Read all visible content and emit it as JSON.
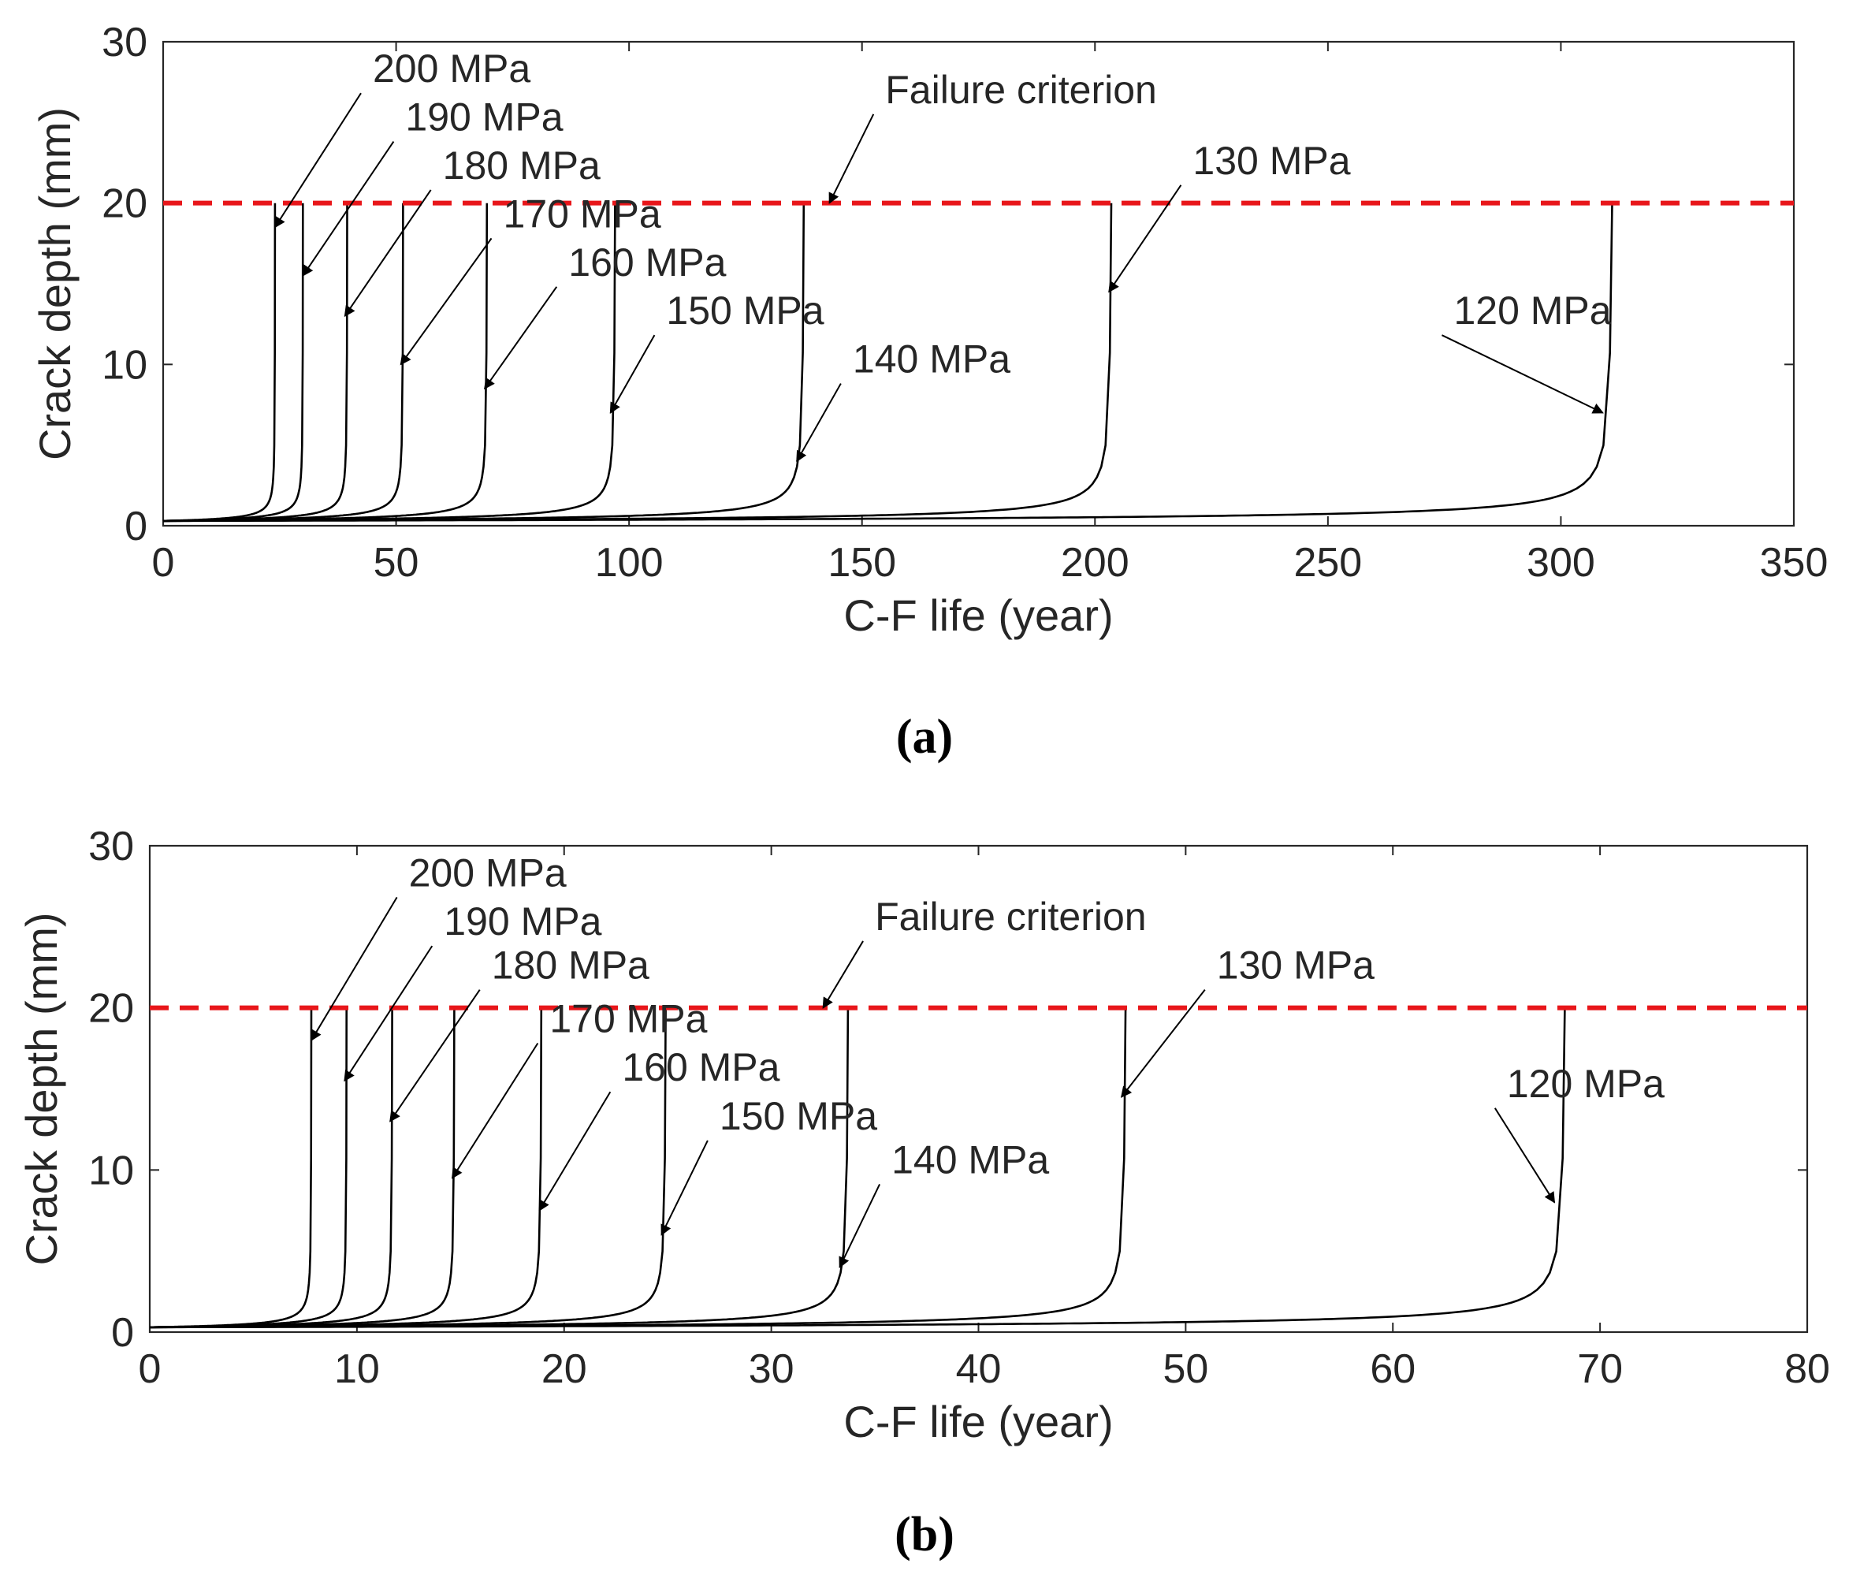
{
  "chart_data": [
    {
      "type": "line",
      "panel_label": "(a)",
      "xlabel": "C-F life (year)",
      "ylabel": "Crack depth (mm)",
      "xlim": [
        0,
        350
      ],
      "ylim": [
        0,
        30
      ],
      "xticks": [
        0,
        50,
        100,
        150,
        200,
        250,
        300,
        350
      ],
      "yticks": [
        0,
        10,
        20,
        30
      ],
      "grid": false,
      "initial_crack_depth_mm": 0.3,
      "failure_criterion": {
        "label": "Failure criterion",
        "y": 20,
        "color": "#e8161a",
        "label_x": 155,
        "label_y": 26.2,
        "arrow_to": [
          143,
          20.0
        ]
      },
      "series": [
        {
          "name": "200 MPa",
          "life": 24,
          "label_x": 45,
          "label_y": 27.5,
          "arrow_to": [
            24,
            18.5
          ]
        },
        {
          "name": "190 MPa",
          "life": 30,
          "label_x": 52,
          "label_y": 24.5,
          "arrow_to": [
            30,
            15.5
          ]
        },
        {
          "name": "180 MPa",
          "life": 39.5,
          "label_x": 60,
          "label_y": 21.5,
          "arrow_to": [
            39,
            13.0
          ]
        },
        {
          "name": "170 MPa",
          "life": 51.5,
          "label_x": 73,
          "label_y": 18.5,
          "arrow_to": [
            51,
            10.0
          ]
        },
        {
          "name": "160 MPa",
          "life": 69.5,
          "label_x": 87,
          "label_y": 15.5,
          "arrow_to": [
            69,
            8.5
          ]
        },
        {
          "name": "150 MPa",
          "life": 97,
          "label_x": 108,
          "label_y": 12.5,
          "arrow_to": [
            96,
            7.0
          ]
        },
        {
          "name": "140 MPa",
          "life": 137.5,
          "label_x": 148,
          "label_y": 9.5,
          "arrow_to": [
            136,
            4.0
          ]
        },
        {
          "name": "130 MPa",
          "life": 203.5,
          "label_x": 221,
          "label_y": 21.8,
          "arrow_to": [
            203,
            14.5
          ]
        },
        {
          "name": "120 MPa",
          "life": 311,
          "label_x": 277,
          "label_y": 12.5,
          "arrow_to": [
            309,
            7.0
          ]
        }
      ]
    },
    {
      "type": "line",
      "panel_label": "(b)",
      "xlabel": "C-F life (year)",
      "ylabel": "Crack depth (mm)",
      "xlim": [
        0,
        80
      ],
      "ylim": [
        0,
        30
      ],
      "xticks": [
        0,
        10,
        20,
        30,
        40,
        50,
        60,
        70,
        80
      ],
      "yticks": [
        0,
        10,
        20,
        30
      ],
      "grid": false,
      "initial_crack_depth_mm": 0.3,
      "failure_criterion": {
        "label": "Failure criterion",
        "y": 20,
        "color": "#e8161a",
        "label_x": 35,
        "label_y": 24.8,
        "arrow_to": [
          32.5,
          20.0
        ]
      },
      "series": [
        {
          "name": "200 MPa",
          "life": 7.8,
          "label_x": 12.5,
          "label_y": 27.5,
          "arrow_to": [
            7.8,
            18.0
          ]
        },
        {
          "name": "190 MPa",
          "life": 9.5,
          "label_x": 14.2,
          "label_y": 24.5,
          "arrow_to": [
            9.4,
            15.5
          ]
        },
        {
          "name": "180 MPa",
          "life": 11.7,
          "label_x": 16.5,
          "label_y": 21.8,
          "arrow_to": [
            11.6,
            13.0
          ]
        },
        {
          "name": "170 MPa",
          "life": 14.7,
          "label_x": 19.3,
          "label_y": 18.5,
          "arrow_to": [
            14.6,
            9.5
          ]
        },
        {
          "name": "160 MPa",
          "life": 18.9,
          "label_x": 22.8,
          "label_y": 15.5,
          "arrow_to": [
            18.8,
            7.5
          ]
        },
        {
          "name": "150 MPa",
          "life": 24.9,
          "label_x": 27.5,
          "label_y": 12.5,
          "arrow_to": [
            24.7,
            6.0
          ]
        },
        {
          "name": "140 MPa",
          "life": 33.7,
          "label_x": 35.8,
          "label_y": 9.8,
          "arrow_to": [
            33.3,
            4.0
          ]
        },
        {
          "name": "130 MPa",
          "life": 47.1,
          "label_x": 51.5,
          "label_y": 21.8,
          "arrow_to": [
            46.9,
            14.5
          ]
        },
        {
          "name": "120 MPa",
          "life": 68.3,
          "label_x": 65.5,
          "label_y": 14.5,
          "arrow_to": [
            67.8,
            8.0
          ]
        }
      ]
    }
  ]
}
